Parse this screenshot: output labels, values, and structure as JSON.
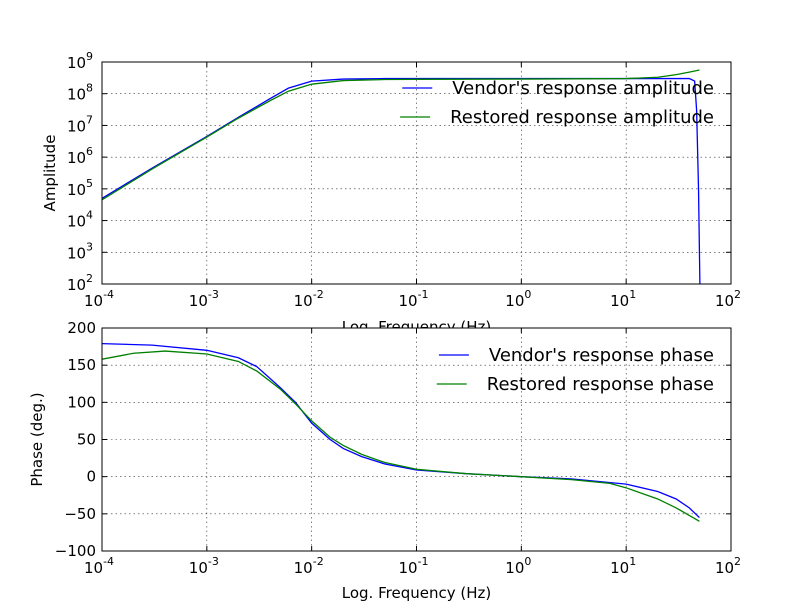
{
  "chart_data": [
    {
      "type": "line",
      "xscale": "log",
      "yscale": "log",
      "xlabel": "Log. Frequency (Hz)",
      "ylabel": "Amplitude",
      "xlim": [
        0.0001,
        100
      ],
      "ylim": [
        100,
        1000000000
      ],
      "grid": true,
      "legend_position": "top-right",
      "x_ticks": [
        {
          "value": 0.0001,
          "base": "10",
          "exp": "-4"
        },
        {
          "value": 0.001,
          "base": "10",
          "exp": "-3"
        },
        {
          "value": 0.01,
          "base": "10",
          "exp": "-2"
        },
        {
          "value": 0.1,
          "base": "10",
          "exp": "-1"
        },
        {
          "value": 1,
          "base": "10",
          "exp": "0"
        },
        {
          "value": 10,
          "base": "10",
          "exp": "1"
        },
        {
          "value": 100,
          "base": "10",
          "exp": "2"
        }
      ],
      "y_ticks": [
        {
          "value": 100,
          "base": "10",
          "exp": "2"
        },
        {
          "value": 1000,
          "base": "10",
          "exp": "3"
        },
        {
          "value": 10000,
          "base": "10",
          "exp": "4"
        },
        {
          "value": 100000,
          "base": "10",
          "exp": "5"
        },
        {
          "value": 1000000,
          "base": "10",
          "exp": "6"
        },
        {
          "value": 10000000,
          "base": "10",
          "exp": "7"
        },
        {
          "value": 100000000,
          "base": "10",
          "exp": "8"
        },
        {
          "value": 1000000000,
          "base": "10",
          "exp": "9"
        }
      ],
      "series": [
        {
          "name": "Vendor's response amplitude",
          "color": "#0000ff",
          "points": [
            [
              0.0001,
              50000
            ],
            [
              0.0003,
              450000
            ],
            [
              0.001,
              4500000
            ],
            [
              0.002,
              18000000
            ],
            [
              0.004,
              70000000
            ],
            [
              0.006,
              150000000
            ],
            [
              0.01,
              250000000
            ],
            [
              0.02,
              290000000
            ],
            [
              0.05,
              300000000
            ],
            [
              0.1,
              300000000
            ],
            [
              1,
              300000000
            ],
            [
              10,
              300000000
            ],
            [
              30,
              300000000
            ],
            [
              40,
              300000000
            ],
            [
              45,
              250000000
            ],
            [
              47,
              30000000
            ],
            [
              49,
              100000
            ],
            [
              50.5,
              100
            ]
          ]
        },
        {
          "name": "Restored response amplitude",
          "color": "#008000",
          "points": [
            [
              0.0001,
              45000
            ],
            [
              0.0003,
              420000
            ],
            [
              0.001,
              4300000
            ],
            [
              0.002,
              17000000
            ],
            [
              0.004,
              60000000
            ],
            [
              0.006,
              120000000
            ],
            [
              0.01,
              200000000
            ],
            [
              0.02,
              260000000
            ],
            [
              0.05,
              280000000
            ],
            [
              0.1,
              285000000
            ],
            [
              1,
              290000000
            ],
            [
              10,
              300000000
            ],
            [
              20,
              330000000
            ],
            [
              30,
              400000000
            ],
            [
              40,
              480000000
            ],
            [
              50,
              560000000
            ]
          ]
        }
      ]
    },
    {
      "type": "line",
      "xscale": "log",
      "yscale": "linear",
      "xlabel": "Log. Frequency (Hz)",
      "ylabel": "Phase (deg.)",
      "xlim": [
        0.0001,
        100
      ],
      "ylim": [
        -100,
        200
      ],
      "grid": true,
      "legend_position": "top-right",
      "x_ticks": [
        {
          "value": 0.0001,
          "base": "10",
          "exp": "-4"
        },
        {
          "value": 0.001,
          "base": "10",
          "exp": "-3"
        },
        {
          "value": 0.01,
          "base": "10",
          "exp": "-2"
        },
        {
          "value": 0.1,
          "base": "10",
          "exp": "-1"
        },
        {
          "value": 1,
          "base": "10",
          "exp": "0"
        },
        {
          "value": 10,
          "base": "10",
          "exp": "1"
        },
        {
          "value": 100,
          "base": "10",
          "exp": "2"
        }
      ],
      "y_ticks": [
        {
          "value": -100,
          "label": "−100"
        },
        {
          "value": -50,
          "label": "−50"
        },
        {
          "value": 0,
          "label": "0"
        },
        {
          "value": 50,
          "label": "50"
        },
        {
          "value": 100,
          "label": "100"
        },
        {
          "value": 150,
          "label": "150"
        },
        {
          "value": 200,
          "label": "200"
        }
      ],
      "series": [
        {
          "name": "Vendor's response phase",
          "color": "#0000ff",
          "points": [
            [
              0.0001,
              179
            ],
            [
              0.0003,
              177
            ],
            [
              0.001,
              170
            ],
            [
              0.002,
              160
            ],
            [
              0.003,
              148
            ],
            [
              0.005,
              120
            ],
            [
              0.007,
              100
            ],
            [
              0.01,
              72
            ],
            [
              0.015,
              50
            ],
            [
              0.02,
              38
            ],
            [
              0.03,
              27
            ],
            [
              0.05,
              17
            ],
            [
              0.1,
              9
            ],
            [
              0.3,
              4
            ],
            [
              1,
              0
            ],
            [
              3,
              -3
            ],
            [
              10,
              -10
            ],
            [
              20,
              -20
            ],
            [
              30,
              -30
            ],
            [
              40,
              -42
            ],
            [
              50,
              -55
            ]
          ]
        },
        {
          "name": "Restored response phase",
          "color": "#008000",
          "points": [
            [
              0.0001,
              158
            ],
            [
              0.0002,
              166
            ],
            [
              0.0004,
              169
            ],
            [
              0.001,
              165
            ],
            [
              0.002,
              155
            ],
            [
              0.003,
              142
            ],
            [
              0.005,
              118
            ],
            [
              0.007,
              98
            ],
            [
              0.01,
              75
            ],
            [
              0.015,
              53
            ],
            [
              0.02,
              42
            ],
            [
              0.03,
              30
            ],
            [
              0.05,
              19
            ],
            [
              0.1,
              10
            ],
            [
              0.3,
              4
            ],
            [
              1,
              0
            ],
            [
              3,
              -4
            ],
            [
              7,
              -9
            ],
            [
              10,
              -15
            ],
            [
              20,
              -30
            ],
            [
              30,
              -42
            ],
            [
              50,
              -60
            ]
          ]
        }
      ]
    }
  ]
}
